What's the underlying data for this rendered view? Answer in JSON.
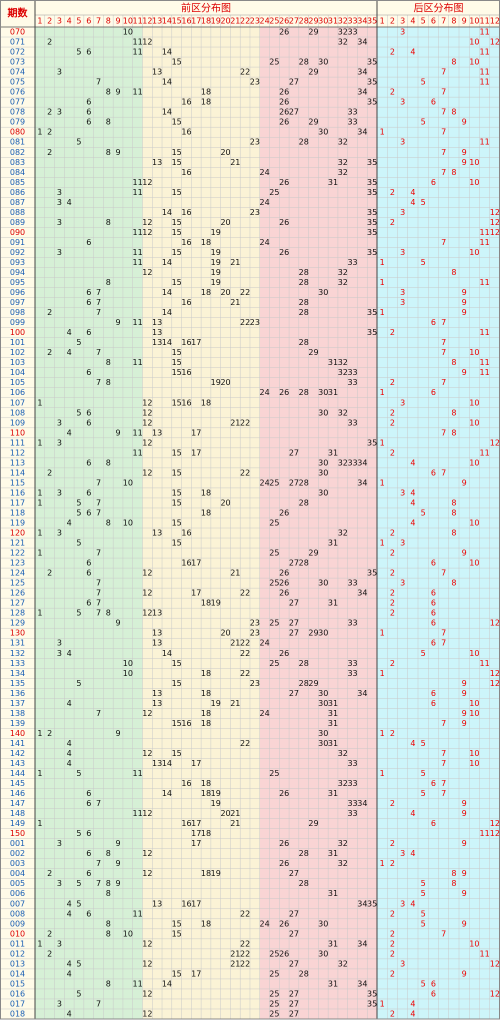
{
  "header": {
    "period_label": "期数",
    "front_title": "前区分布图",
    "back_title": "后区分布图",
    "front_columns": [
      1,
      2,
      3,
      4,
      5,
      6,
      7,
      8,
      9,
      10,
      11,
      12,
      13,
      14,
      15,
      16,
      17,
      18,
      19,
      20,
      21,
      22,
      23,
      24,
      25,
      26,
      27,
      28,
      29,
      30,
      31,
      32,
      33,
      34,
      35
    ],
    "back_columns": [
      1,
      2,
      3,
      4,
      5,
      6,
      7,
      8,
      9,
      10,
      11,
      12
    ]
  },
  "rows": [
    {
      "period": "070",
      "front": [
        10,
        26,
        29,
        32,
        33
      ],
      "back": [
        3,
        11
      ]
    },
    {
      "period": "071",
      "front": [
        2,
        11,
        12,
        32,
        34
      ],
      "back": [
        10,
        12
      ]
    },
    {
      "period": "072",
      "front": [
        5,
        6,
        11,
        14
      ],
      "back": [
        2,
        4,
        11
      ]
    },
    {
      "period": "073",
      "front": [
        15,
        25,
        28,
        30,
        35
      ],
      "back": [
        8,
        10
      ]
    },
    {
      "period": "074",
      "front": [
        3,
        13,
        22,
        29,
        34
      ],
      "back": [
        7,
        11
      ]
    },
    {
      "period": "075",
      "front": [
        7,
        14,
        23,
        27,
        35
      ],
      "back": [
        5,
        11
      ]
    },
    {
      "period": "076",
      "front": [
        8,
        9,
        11,
        18,
        26,
        34
      ],
      "back": [
        2,
        7
      ]
    },
    {
      "period": "077",
      "front": [
        6,
        16,
        18,
        26,
        35
      ],
      "back": [
        3,
        6
      ]
    },
    {
      "period": "078",
      "front": [
        2,
        3,
        6,
        14,
        26,
        27,
        33
      ],
      "back": [
        7,
        8
      ]
    },
    {
      "period": "079",
      "front": [
        6,
        8,
        15,
        26,
        29,
        33
      ],
      "back": [
        5,
        9
      ]
    },
    {
      "period": "080",
      "front": [
        1,
        2,
        16,
        30,
        34
      ],
      "back": [
        1,
        7
      ]
    },
    {
      "period": "081",
      "front": [
        5,
        23,
        28,
        32
      ],
      "back": [
        3,
        11
      ]
    },
    {
      "period": "082",
      "front": [
        2,
        8,
        9,
        15,
        20
      ],
      "back": [
        7,
        9
      ]
    },
    {
      "period": "083",
      "front": [
        13,
        15,
        21,
        32,
        35
      ],
      "back": [
        9,
        10
      ]
    },
    {
      "period": "084",
      "front": [
        16,
        24,
        32
      ],
      "back": [
        7,
        8
      ]
    },
    {
      "period": "085",
      "front": [
        11,
        12,
        26,
        31,
        35
      ],
      "back": [
        6,
        10
      ]
    },
    {
      "period": "086",
      "front": [
        3,
        11,
        15,
        25,
        35
      ],
      "back": [
        2,
        4
      ]
    },
    {
      "period": "087",
      "front": [
        3,
        4,
        24
      ],
      "back": [
        4,
        5
      ]
    },
    {
      "period": "088",
      "front": [
        14,
        16,
        23,
        35
      ],
      "back": [
        3,
        12
      ]
    },
    {
      "period": "089",
      "front": [
        3,
        8,
        12,
        15,
        20,
        26,
        35
      ],
      "back": [
        2,
        12
      ]
    },
    {
      "period": "090",
      "front": [
        11,
        12,
        15,
        19,
        35
      ],
      "back": [
        11,
        12
      ]
    },
    {
      "period": "091",
      "front": [
        6,
        16,
        18,
        24
      ],
      "back": [
        7,
        11
      ]
    },
    {
      "period": "092",
      "front": [
        3,
        11,
        15,
        19,
        26,
        35
      ],
      "back": [
        3,
        10
      ]
    },
    {
      "period": "093",
      "front": [
        11,
        14,
        19,
        21,
        33
      ],
      "back": [
        1,
        5
      ]
    },
    {
      "period": "094",
      "front": [
        12,
        19,
        28,
        32
      ],
      "back": [
        8
      ]
    },
    {
      "period": "095",
      "front": [
        8,
        15,
        19,
        28,
        32
      ],
      "back": [
        1,
        11
      ]
    },
    {
      "period": "096",
      "front": [
        6,
        7,
        14,
        18,
        20,
        22,
        30
      ],
      "back": [
        3,
        9
      ]
    },
    {
      "period": "097",
      "front": [
        6,
        7,
        16,
        21,
        28
      ],
      "back": [
        3,
        9
      ]
    },
    {
      "period": "098",
      "front": [
        2,
        7,
        14,
        28,
        35
      ],
      "back": [
        1,
        9
      ]
    },
    {
      "period": "099",
      "front": [
        9,
        11,
        13,
        22,
        23
      ],
      "back": [
        6,
        7
      ]
    },
    {
      "period": "100",
      "front": [
        4,
        6,
        13,
        35
      ],
      "back": [
        2,
        11
      ]
    },
    {
      "period": "101",
      "front": [
        5,
        13,
        14,
        16,
        17,
        28
      ],
      "back": [
        7
      ]
    },
    {
      "period": "102",
      "front": [
        2,
        4,
        7,
        15,
        29
      ],
      "back": [
        7,
        10
      ]
    },
    {
      "period": "103",
      "front": [
        8,
        11,
        15,
        31,
        32
      ],
      "back": [
        8,
        11
      ]
    },
    {
      "period": "104",
      "front": [
        6,
        15,
        16,
        32,
        33
      ],
      "back": [
        9,
        11
      ]
    },
    {
      "period": "105",
      "front": [
        7,
        8,
        19,
        20,
        33
      ],
      "back": [
        2,
        7
      ]
    },
    {
      "period": "106",
      "front": [
        24,
        26,
        28,
        30,
        31
      ],
      "back": [
        1,
        6
      ]
    },
    {
      "period": "107",
      "front": [
        1,
        12,
        15,
        16,
        18
      ],
      "back": [
        3,
        10
      ]
    },
    {
      "period": "108",
      "front": [
        5,
        6,
        12,
        30,
        32
      ],
      "back": [
        2,
        8
      ]
    },
    {
      "period": "109",
      "front": [
        3,
        6,
        12,
        21,
        22,
        33
      ],
      "back": [
        2,
        10
      ]
    },
    {
      "period": "110",
      "front": [
        4,
        9,
        11,
        13,
        17
      ],
      "back": [
        7,
        8
      ]
    },
    {
      "period": "111",
      "front": [
        1,
        3,
        12,
        35
      ],
      "back": [
        1,
        12
      ]
    },
    {
      "period": "112",
      "front": [
        11,
        15,
        17,
        27,
        31
      ],
      "back": [
        2,
        11
      ]
    },
    {
      "period": "113",
      "front": [
        6,
        8,
        30,
        32,
        33,
        34
      ],
      "back": [
        4,
        10
      ]
    },
    {
      "period": "114",
      "front": [
        2,
        12,
        15,
        22,
        30
      ],
      "back": [
        6,
        7
      ]
    },
    {
      "period": "115",
      "front": [
        7,
        10,
        24,
        25,
        27,
        28,
        34
      ],
      "back": [
        1,
        9
      ]
    },
    {
      "period": "116",
      "front": [
        1,
        3,
        6,
        15,
        18,
        30
      ],
      "back": [
        3,
        4
      ]
    },
    {
      "period": "117",
      "front": [
        1,
        5,
        7,
        15,
        20,
        28
      ],
      "back": [
        4,
        8
      ]
    },
    {
      "period": "118",
      "front": [
        5,
        6,
        7,
        18,
        26
      ],
      "back": [
        5,
        8
      ]
    },
    {
      "period": "119",
      "front": [
        4,
        8,
        10,
        15,
        25
      ],
      "back": [
        4,
        10
      ]
    },
    {
      "period": "120",
      "front": [
        1,
        3,
        13,
        16,
        32
      ],
      "back": [
        2,
        8
      ]
    },
    {
      "period": "121",
      "front": [
        5,
        15,
        31
      ],
      "back": [
        1,
        3
      ]
    },
    {
      "period": "122",
      "front": [
        1,
        7,
        25,
        29
      ],
      "back": [
        2,
        9
      ]
    },
    {
      "period": "123",
      "front": [
        6,
        16,
        17,
        27,
        28
      ],
      "back": [
        6,
        10
      ]
    },
    {
      "period": "124",
      "front": [
        2,
        6,
        12,
        21,
        26,
        35
      ],
      "back": [
        2,
        7
      ]
    },
    {
      "period": "125",
      "front": [
        7,
        25,
        26,
        30,
        33
      ],
      "back": [
        3,
        8
      ]
    },
    {
      "period": "126",
      "front": [
        7,
        12,
        17,
        22,
        26,
        34
      ],
      "back": [
        2,
        6
      ]
    },
    {
      "period": "127",
      "front": [
        6,
        7,
        18,
        19,
        27,
        31
      ],
      "back": [
        2,
        6
      ]
    },
    {
      "period": "128",
      "front": [
        1,
        5,
        7,
        8,
        12,
        13
      ],
      "back": [
        2,
        6
      ]
    },
    {
      "period": "129",
      "front": [
        9,
        23,
        25,
        27,
        33
      ],
      "back": [
        6,
        12
      ]
    },
    {
      "period": "130",
      "front": [
        13,
        20,
        23,
        27,
        29,
        30
      ],
      "back": [
        1,
        7
      ]
    },
    {
      "period": "131",
      "front": [
        3,
        13,
        21,
        22,
        24
      ],
      "back": [
        6,
        7
      ]
    },
    {
      "period": "132",
      "front": [
        3,
        4,
        14,
        22,
        26
      ],
      "back": [
        5,
        10
      ]
    },
    {
      "period": "133",
      "front": [
        10,
        15,
        25,
        28,
        33
      ],
      "back": [
        2,
        11
      ]
    },
    {
      "period": "134",
      "front": [
        10,
        18,
        22,
        33
      ],
      "back": [
        1,
        12
      ]
    },
    {
      "period": "135",
      "front": [
        5,
        15,
        23,
        28,
        29
      ],
      "back": [
        9,
        12
      ]
    },
    {
      "period": "136",
      "front": [
        13,
        18,
        27,
        30,
        34
      ],
      "back": [
        6,
        9
      ]
    },
    {
      "period": "137",
      "front": [
        4,
        13,
        19,
        21,
        30,
        31
      ],
      "back": [
        6,
        10
      ]
    },
    {
      "period": "138",
      "front": [
        7,
        12,
        18,
        24,
        31
      ],
      "back": [
        9,
        10
      ]
    },
    {
      "period": "139",
      "front": [
        15,
        16,
        18,
        31
      ],
      "back": [
        7,
        9
      ]
    },
    {
      "period": "140",
      "front": [
        1,
        2,
        9,
        30
      ],
      "back": [
        1,
        2
      ]
    },
    {
      "period": "141",
      "front": [
        4,
        22,
        30,
        31
      ],
      "back": [
        4,
        5
      ]
    },
    {
      "period": "142",
      "front": [
        4,
        12,
        15,
        32
      ],
      "back": [
        7,
        10
      ]
    },
    {
      "period": "143",
      "front": [
        4,
        13,
        14,
        17,
        33
      ],
      "back": [
        7,
        10
      ]
    },
    {
      "period": "144",
      "front": [
        1,
        5,
        11,
        25
      ],
      "back": [
        1,
        5
      ]
    },
    {
      "period": "145",
      "front": [
        16,
        18,
        32,
        33
      ],
      "back": [
        6,
        7
      ]
    },
    {
      "period": "146",
      "front": [
        6,
        14,
        18,
        19,
        26,
        31
      ],
      "back": [
        5,
        7
      ]
    },
    {
      "period": "147",
      "front": [
        6,
        7,
        19,
        33,
        34
      ],
      "back": [
        2,
        9
      ]
    },
    {
      "period": "148",
      "front": [
        11,
        12,
        20,
        21,
        33
      ],
      "back": [
        4,
        9
      ]
    },
    {
      "period": "149",
      "front": [
        1,
        16,
        17,
        21,
        29
      ],
      "back": [
        6,
        12
      ]
    },
    {
      "period": "150",
      "front": [
        5,
        6,
        17,
        18
      ],
      "back": [
        11,
        12
      ]
    },
    {
      "period": "001",
      "front": [
        3,
        9,
        17,
        26,
        32
      ],
      "back": [
        2,
        9
      ]
    },
    {
      "period": "002",
      "front": [
        6,
        8,
        12,
        28,
        31
      ],
      "back": [
        3,
        4
      ]
    },
    {
      "period": "003",
      "front": [
        7,
        9,
        26,
        32
      ],
      "back": [
        1,
        2
      ]
    },
    {
      "period": "004",
      "front": [
        2,
        6,
        12,
        18,
        19,
        27
      ],
      "back": [
        8,
        9
      ]
    },
    {
      "period": "005",
      "front": [
        3,
        5,
        7,
        8,
        9,
        28
      ],
      "back": [
        5,
        8
      ]
    },
    {
      "period": "006",
      "front": [
        8,
        31
      ],
      "back": [
        5,
        9
      ]
    },
    {
      "period": "007",
      "front": [
        4,
        5,
        13,
        16,
        17,
        34,
        35
      ],
      "back": [
        3,
        4
      ]
    },
    {
      "period": "008",
      "front": [
        4,
        6,
        11,
        22,
        27
      ],
      "back": [
        2,
        5
      ]
    },
    {
      "period": "009",
      "front": [
        8,
        15,
        18,
        24,
        26,
        30
      ],
      "back": [
        5,
        9
      ]
    },
    {
      "period": "010",
      "front": [
        2,
        8,
        10,
        15,
        27
      ],
      "back": [
        2,
        7
      ]
    },
    {
      "period": "011",
      "front": [
        1,
        3,
        12,
        22,
        31,
        34
      ],
      "back": [
        2,
        10
      ]
    },
    {
      "period": "012",
      "front": [
        2,
        21,
        22,
        25,
        26,
        30
      ],
      "back": [
        2,
        11
      ]
    },
    {
      "period": "013",
      "front": [
        4,
        5,
        12,
        21,
        22,
        27,
        32
      ],
      "back": [
        3,
        12
      ]
    },
    {
      "period": "014",
      "front": [
        4,
        15,
        17,
        25,
        28
      ],
      "back": [
        2,
        9
      ]
    },
    {
      "period": "015",
      "front": [
        8,
        11,
        14,
        31,
        34
      ],
      "back": [
        5,
        6
      ]
    },
    {
      "period": "016",
      "front": [
        5,
        12,
        25,
        27,
        35
      ],
      "back": [
        6,
        12
      ]
    },
    {
      "period": "017",
      "front": [
        3,
        7,
        25,
        27,
        35
      ],
      "back": [
        1,
        4
      ]
    },
    {
      "period": "018",
      "front": [
        4,
        12,
        25,
        27
      ],
      "back": [
        2,
        4
      ]
    }
  ]
}
